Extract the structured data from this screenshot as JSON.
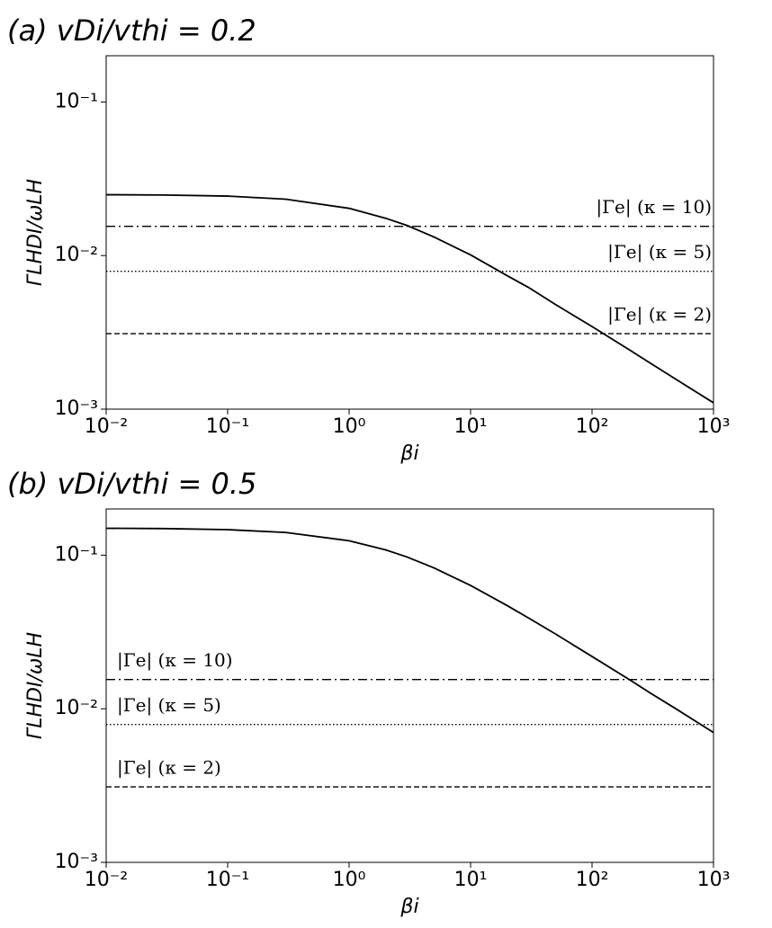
{
  "chart_data": [
    {
      "type": "line",
      "title": "(a) vDi/vthi = 0.2",
      "xlabel": "βi",
      "ylabel": "ΓLHDI/ωLH",
      "x": [
        0.01,
        0.03,
        0.1,
        0.3,
        1,
        2,
        3,
        5,
        10,
        20,
        30,
        50,
        100,
        200,
        300,
        500,
        1000
      ],
      "values": [
        0.0249,
        0.0248,
        0.0244,
        0.0233,
        0.0203,
        0.0175,
        0.0157,
        0.0132,
        0.0101,
        0.0074,
        0.0062,
        0.0048,
        0.00345,
        0.00245,
        0.002,
        0.00155,
        0.0011
      ],
      "color": "#000000",
      "log_x": true,
      "log_y": true,
      "xlim": [
        0.01,
        1000
      ],
      "ylim": [
        0.001,
        0.2
      ],
      "xticks": [
        {
          "value": 0.01,
          "label": "10⁻²"
        },
        {
          "value": 0.1,
          "label": "10⁻¹"
        },
        {
          "value": 1,
          "label": "10⁰"
        },
        {
          "value": 10,
          "label": "10¹"
        },
        {
          "value": 100,
          "label": "10²"
        },
        {
          "value": 1000,
          "label": "10³"
        }
      ],
      "yticks": [
        {
          "value": 0.001,
          "label": "10⁻³"
        },
        {
          "value": 0.01,
          "label": "10⁻²"
        },
        {
          "value": 0.1,
          "label": "10⁻¹"
        }
      ],
      "annotation_side": "right",
      "hlines": [
        {
          "name": "|Γe| (κ = 10)",
          "value": 0.0155,
          "style": "dashdot"
        },
        {
          "name": "|Γe| (κ = 5)",
          "value": 0.0079,
          "style": "dotted"
        },
        {
          "name": "|Γe| (κ = 2)",
          "value": 0.0031,
          "style": "dashed"
        }
      ]
    },
    {
      "type": "line",
      "title": "(b) vDi/vthi = 0.5",
      "xlabel": "βi",
      "ylabel": "ΓLHDI/ωLH",
      "x": [
        0.01,
        0.03,
        0.1,
        0.3,
        1,
        2,
        3,
        5,
        10,
        20,
        30,
        50,
        100,
        200,
        300,
        500,
        1000
      ],
      "values": [
        0.1497,
        0.149,
        0.1467,
        0.1406,
        0.1242,
        0.1083,
        0.0973,
        0.0826,
        0.0635,
        0.047,
        0.039,
        0.0307,
        0.0219,
        0.0156,
        0.0127,
        0.0099,
        0.007
      ],
      "color": "#000000",
      "log_x": true,
      "log_y": true,
      "xlim": [
        0.01,
        1000
      ],
      "ylim": [
        0.001,
        0.2
      ],
      "xticks": [
        {
          "value": 0.01,
          "label": "10⁻²"
        },
        {
          "value": 0.1,
          "label": "10⁻¹"
        },
        {
          "value": 1,
          "label": "10⁰"
        },
        {
          "value": 10,
          "label": "10¹"
        },
        {
          "value": 100,
          "label": "10²"
        },
        {
          "value": 1000,
          "label": "10³"
        }
      ],
      "yticks": [
        {
          "value": 0.001,
          "label": "10⁻³"
        },
        {
          "value": 0.01,
          "label": "10⁻²"
        },
        {
          "value": 0.1,
          "label": "10⁻¹"
        }
      ],
      "annotation_side": "left",
      "hlines": [
        {
          "name": "|Γe| (κ = 10)",
          "value": 0.0155,
          "style": "dashdot"
        },
        {
          "name": "|Γe| (κ = 5)",
          "value": 0.0079,
          "style": "dotted"
        },
        {
          "name": "|Γe| (κ = 2)",
          "value": 0.0031,
          "style": "dashed"
        }
      ]
    }
  ]
}
